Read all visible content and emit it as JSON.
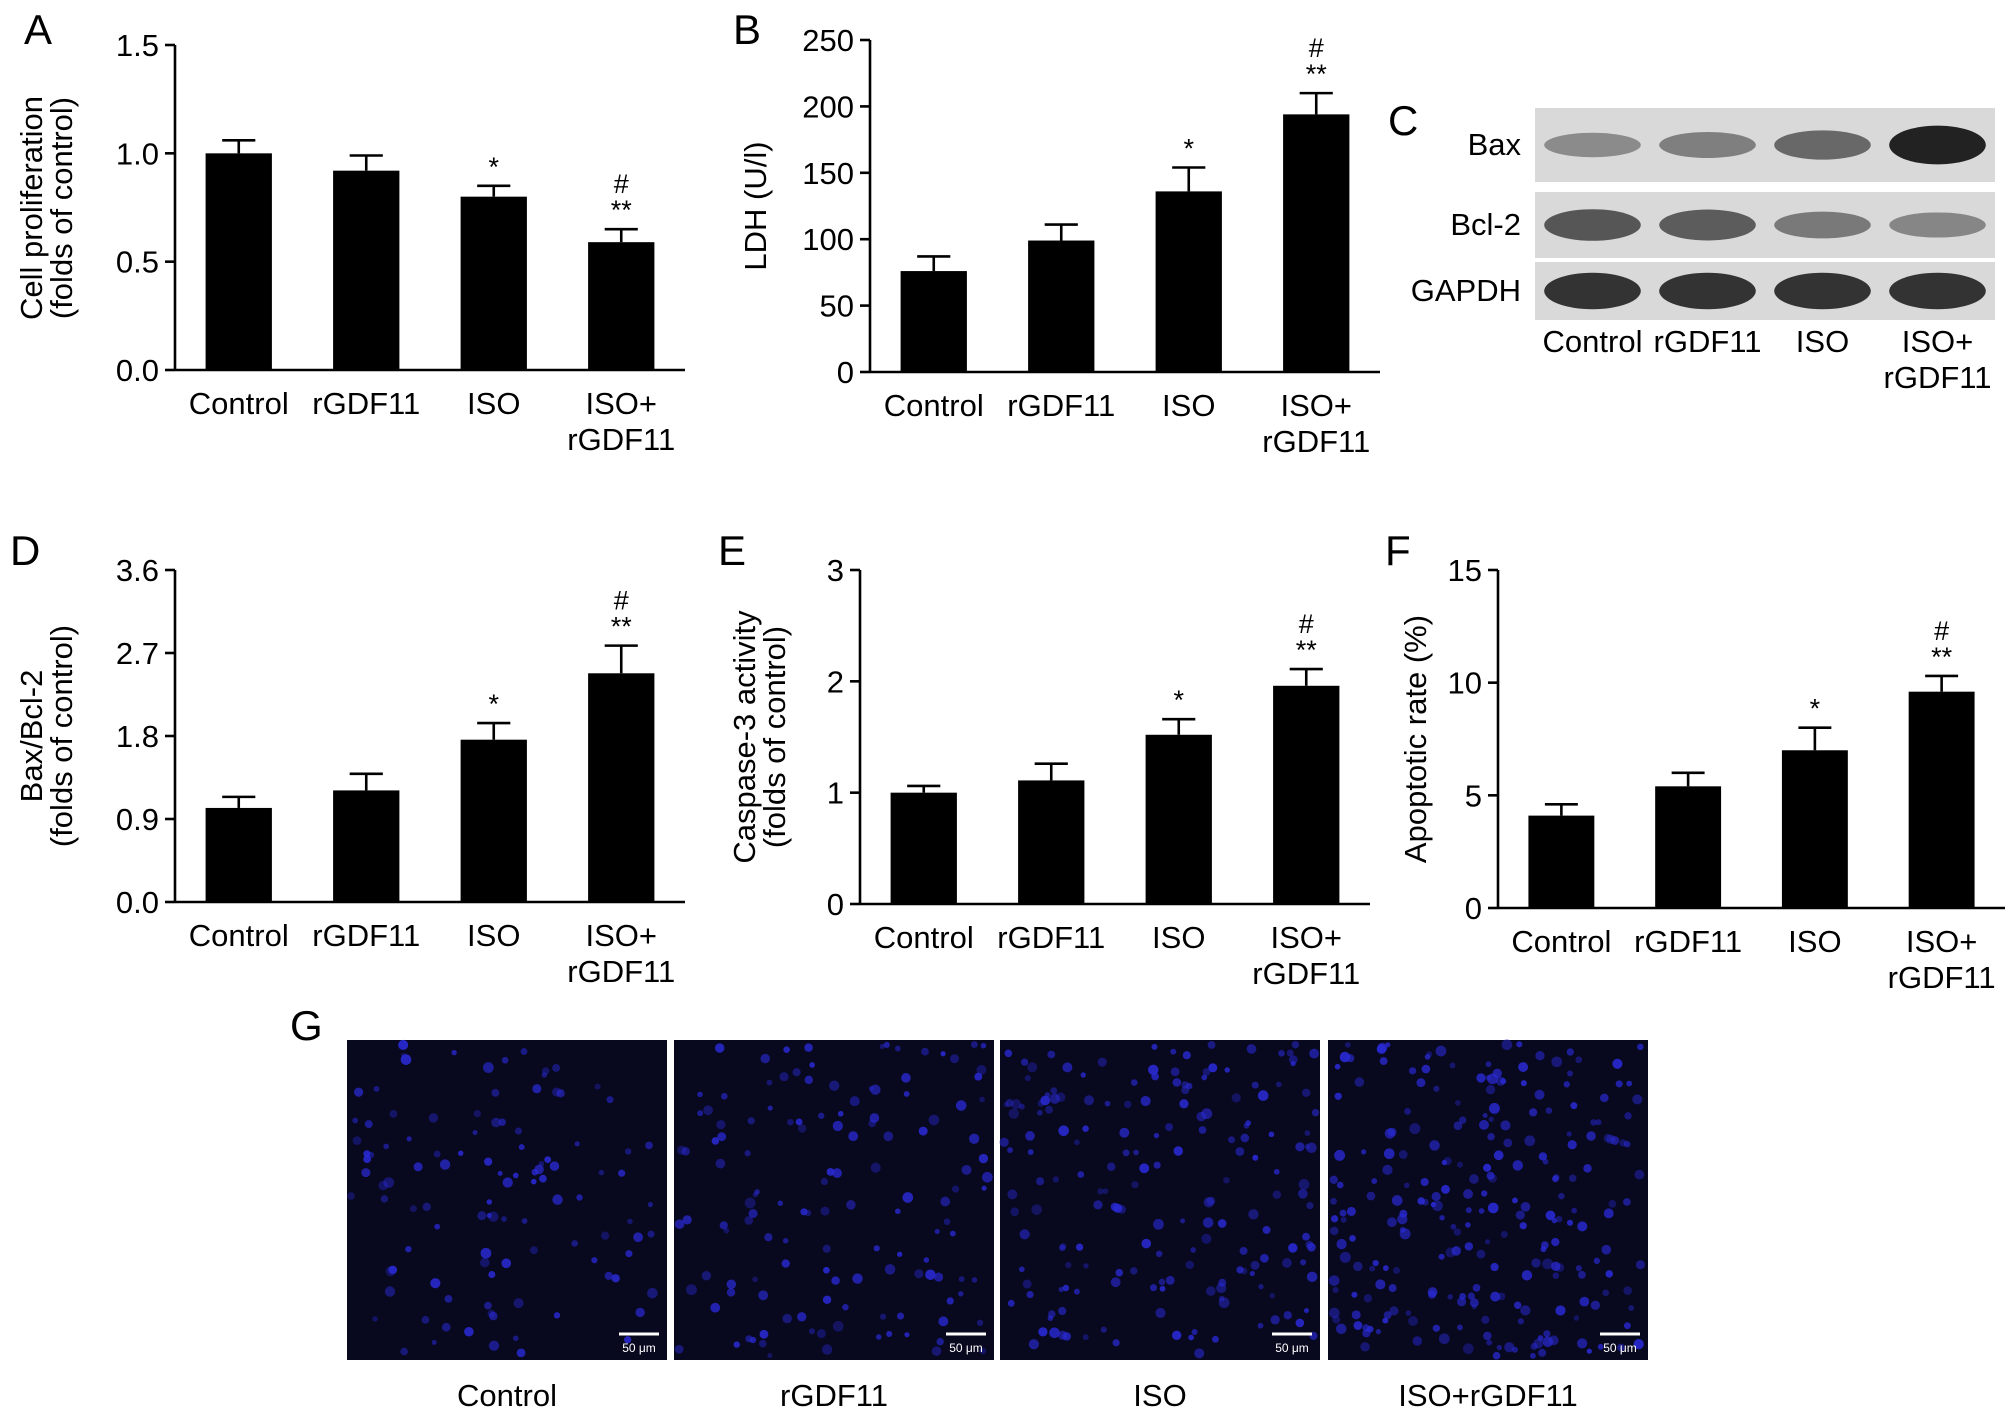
{
  "panels": {
    "A": "A",
    "B": "B",
    "C": "C",
    "D": "D",
    "E": "E",
    "F": "F",
    "G": "G"
  },
  "chart_data": [
    {
      "id": "A",
      "type": "bar",
      "categories": [
        "Control",
        "rGDF11",
        "ISO",
        "ISO+\nrGDF11"
      ],
      "values": [
        1.0,
        0.92,
        0.8,
        0.59
      ],
      "errors": [
        0.06,
        0.07,
        0.05,
        0.06
      ],
      "sig": [
        "",
        "",
        "*",
        "#\n**"
      ],
      "ylabel": [
        "Cell proliferation",
        "(folds of control)"
      ],
      "ylim": [
        0,
        1.5
      ],
      "yticks": [
        "0.0",
        "0.5",
        "1.0",
        "1.5"
      ]
    },
    {
      "id": "B",
      "type": "bar",
      "categories": [
        "Control",
        "rGDF11",
        "ISO",
        "ISO+\nrGDF11"
      ],
      "values": [
        76,
        99,
        136,
        194
      ],
      "errors": [
        11,
        12,
        18,
        16
      ],
      "sig": [
        "",
        "",
        "*",
        "#\n**"
      ],
      "ylabel": [
        "LDH (U/l)"
      ],
      "ylim": [
        0,
        250
      ],
      "yticks": [
        "0",
        "50",
        "100",
        "150",
        "200",
        "250"
      ]
    },
    {
      "id": "D",
      "type": "bar",
      "categories": [
        "Control",
        "rGDF11",
        "ISO",
        "ISO+\nrGDF11"
      ],
      "values": [
        1.02,
        1.21,
        1.76,
        2.48
      ],
      "errors": [
        0.12,
        0.18,
        0.18,
        0.3
      ],
      "sig": [
        "",
        "",
        "*",
        "#\n**"
      ],
      "ylabel": [
        "Bax/Bcl-2",
        "(folds of control)"
      ],
      "ylim": [
        0,
        3.6
      ],
      "yticks": [
        "0.0",
        "0.9",
        "1.8",
        "2.7",
        "3.6"
      ]
    },
    {
      "id": "E",
      "type": "bar",
      "categories": [
        "Control",
        "rGDF11",
        "ISO",
        "ISO+\nrGDF11"
      ],
      "values": [
        1.0,
        1.11,
        1.52,
        1.96
      ],
      "errors": [
        0.06,
        0.15,
        0.14,
        0.15
      ],
      "sig": [
        "",
        "",
        "*",
        "#\n**"
      ],
      "ylabel": [
        "Caspase-3 activity",
        "(folds of control)"
      ],
      "ylim": [
        0,
        3
      ],
      "yticks": [
        "0",
        "1",
        "2",
        "3"
      ]
    },
    {
      "id": "F",
      "type": "bar",
      "categories": [
        "Control",
        "rGDF11",
        "ISO",
        "ISO+\nrGDF11"
      ],
      "values": [
        4.1,
        5.4,
        7.0,
        9.6
      ],
      "errors": [
        0.5,
        0.6,
        1.0,
        0.7
      ],
      "sig": [
        "",
        "",
        "*",
        "#\n**"
      ],
      "ylabel": [
        "Apoptotic rate (%)"
      ],
      "ylim": [
        0,
        15
      ],
      "yticks": [
        "0",
        "5",
        "10",
        "15"
      ]
    }
  ],
  "blot": {
    "rows": [
      "Bax",
      "Bcl-2",
      "GAPDH"
    ],
    "lanes": [
      "Control",
      "rGDF11",
      "ISO",
      "ISO+\nrGDF11"
    ],
    "intensity": [
      [
        0.35,
        0.42,
        0.55,
        0.95
      ],
      [
        0.65,
        0.62,
        0.45,
        0.38
      ],
      [
        0.85,
        0.85,
        0.85,
        0.85
      ]
    ]
  },
  "micrographs": {
    "labels": [
      "Control",
      "rGDF11",
      "ISO",
      "ISO+rGDF11"
    ],
    "scale_bar": "50 μm",
    "background": "#08081f",
    "nuclei_color": "#2a2ad6",
    "relative_density": [
      0.45,
      0.55,
      0.75,
      1.0
    ]
  }
}
